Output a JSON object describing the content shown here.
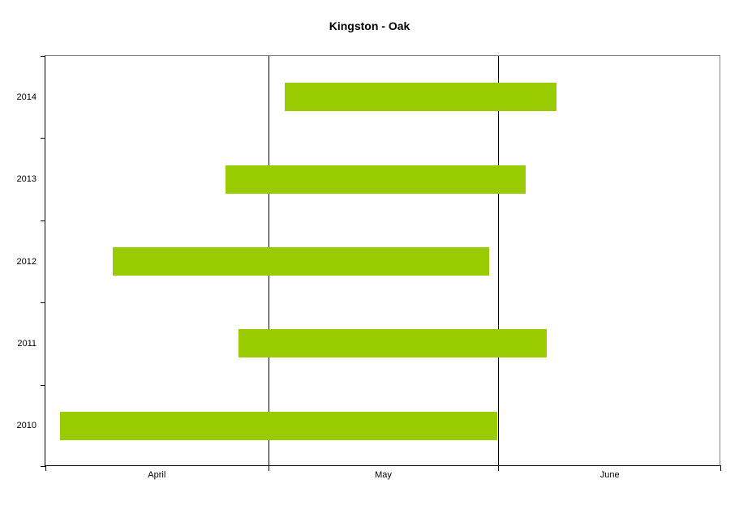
{
  "title": "Kingston - Oak",
  "colors": {
    "bar": "#99CC00",
    "gridline": "#000000",
    "axis": "#000000",
    "plot_border": "#848484",
    "background": "#FFFFFF",
    "text": "#000000"
  },
  "chart_data": {
    "type": "bar",
    "subtype": "horizontal-floating-date-range",
    "title": "Kingston - Oak",
    "orientation": "horizontal",
    "categories": [
      "2014",
      "2013",
      "2012",
      "2011",
      "2010"
    ],
    "series": [
      {
        "name": "date-range",
        "bars": [
          {
            "category": "2014",
            "start_day": 32.2,
            "end_day": 68.8,
            "start_date_est": "May 3",
            "end_date_est": "Jun 8"
          },
          {
            "category": "2013",
            "start_day": 24.3,
            "end_day": 64.7,
            "start_date_est": "Apr 25",
            "end_date_est": "Jun 4"
          },
          {
            "category": "2012",
            "start_day": 9.1,
            "end_day": 59.8,
            "start_date_est": "Apr 10",
            "end_date_est": "May 30"
          },
          {
            "category": "2011",
            "start_day": 26.0,
            "end_day": 67.5,
            "start_date_est": "Apr 27",
            "end_date_est": "Jun 7"
          },
          {
            "category": "2010",
            "start_day": 2.0,
            "end_day": 60.8,
            "start_date_est": "Apr 3",
            "end_date_est": "May 31"
          }
        ]
      }
    ],
    "x_axis": {
      "epoch": "April 1",
      "range_days": [
        0,
        91
      ],
      "tick_days": [
        0,
        30,
        61,
        91
      ],
      "gridline_days": [
        30,
        61
      ],
      "months": [
        {
          "label": "April",
          "start_day": 0,
          "end_day": 30
        },
        {
          "label": "May",
          "start_day": 30,
          "end_day": 61
        },
        {
          "label": "June",
          "start_day": 61,
          "end_day": 91
        }
      ]
    },
    "y_axis": {
      "tick_count": 6,
      "labels": [
        "2014",
        "2013",
        "2012",
        "2011",
        "2010"
      ]
    },
    "grid": "vertical-only",
    "legend": "none"
  }
}
